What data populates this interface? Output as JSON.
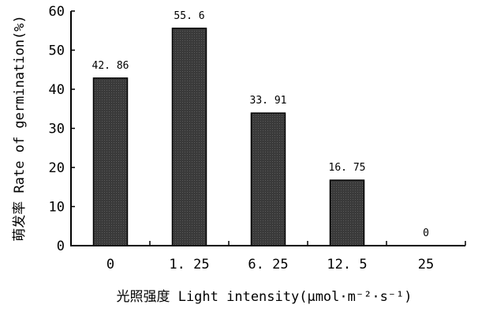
{
  "chart_data": {
    "type": "bar",
    "categories": [
      "0",
      "1. 25",
      "6. 25",
      "12. 5",
      "25"
    ],
    "values": [
      42.86,
      55.6,
      33.91,
      16.75,
      0
    ],
    "data_labels": [
      "42. 86",
      "55. 6",
      "33. 91",
      "16. 75",
      "0"
    ],
    "xlabel": "光照强度 Light intensity(μmol·m⁻²·s⁻¹)",
    "ylabel": "萌发率 Rate of germination(%)",
    "ylim": [
      0,
      60
    ],
    "yticks": [
      0,
      10,
      20,
      30,
      40,
      50,
      60
    ],
    "ytick_labels": [
      "0",
      "10",
      "20",
      "30",
      "40",
      "50",
      "60"
    ],
    "grid": false,
    "legend": "none",
    "colors": {
      "bar_fill": "#3a3a3a",
      "bar_edge": "#000000",
      "axis": "#000000"
    }
  }
}
